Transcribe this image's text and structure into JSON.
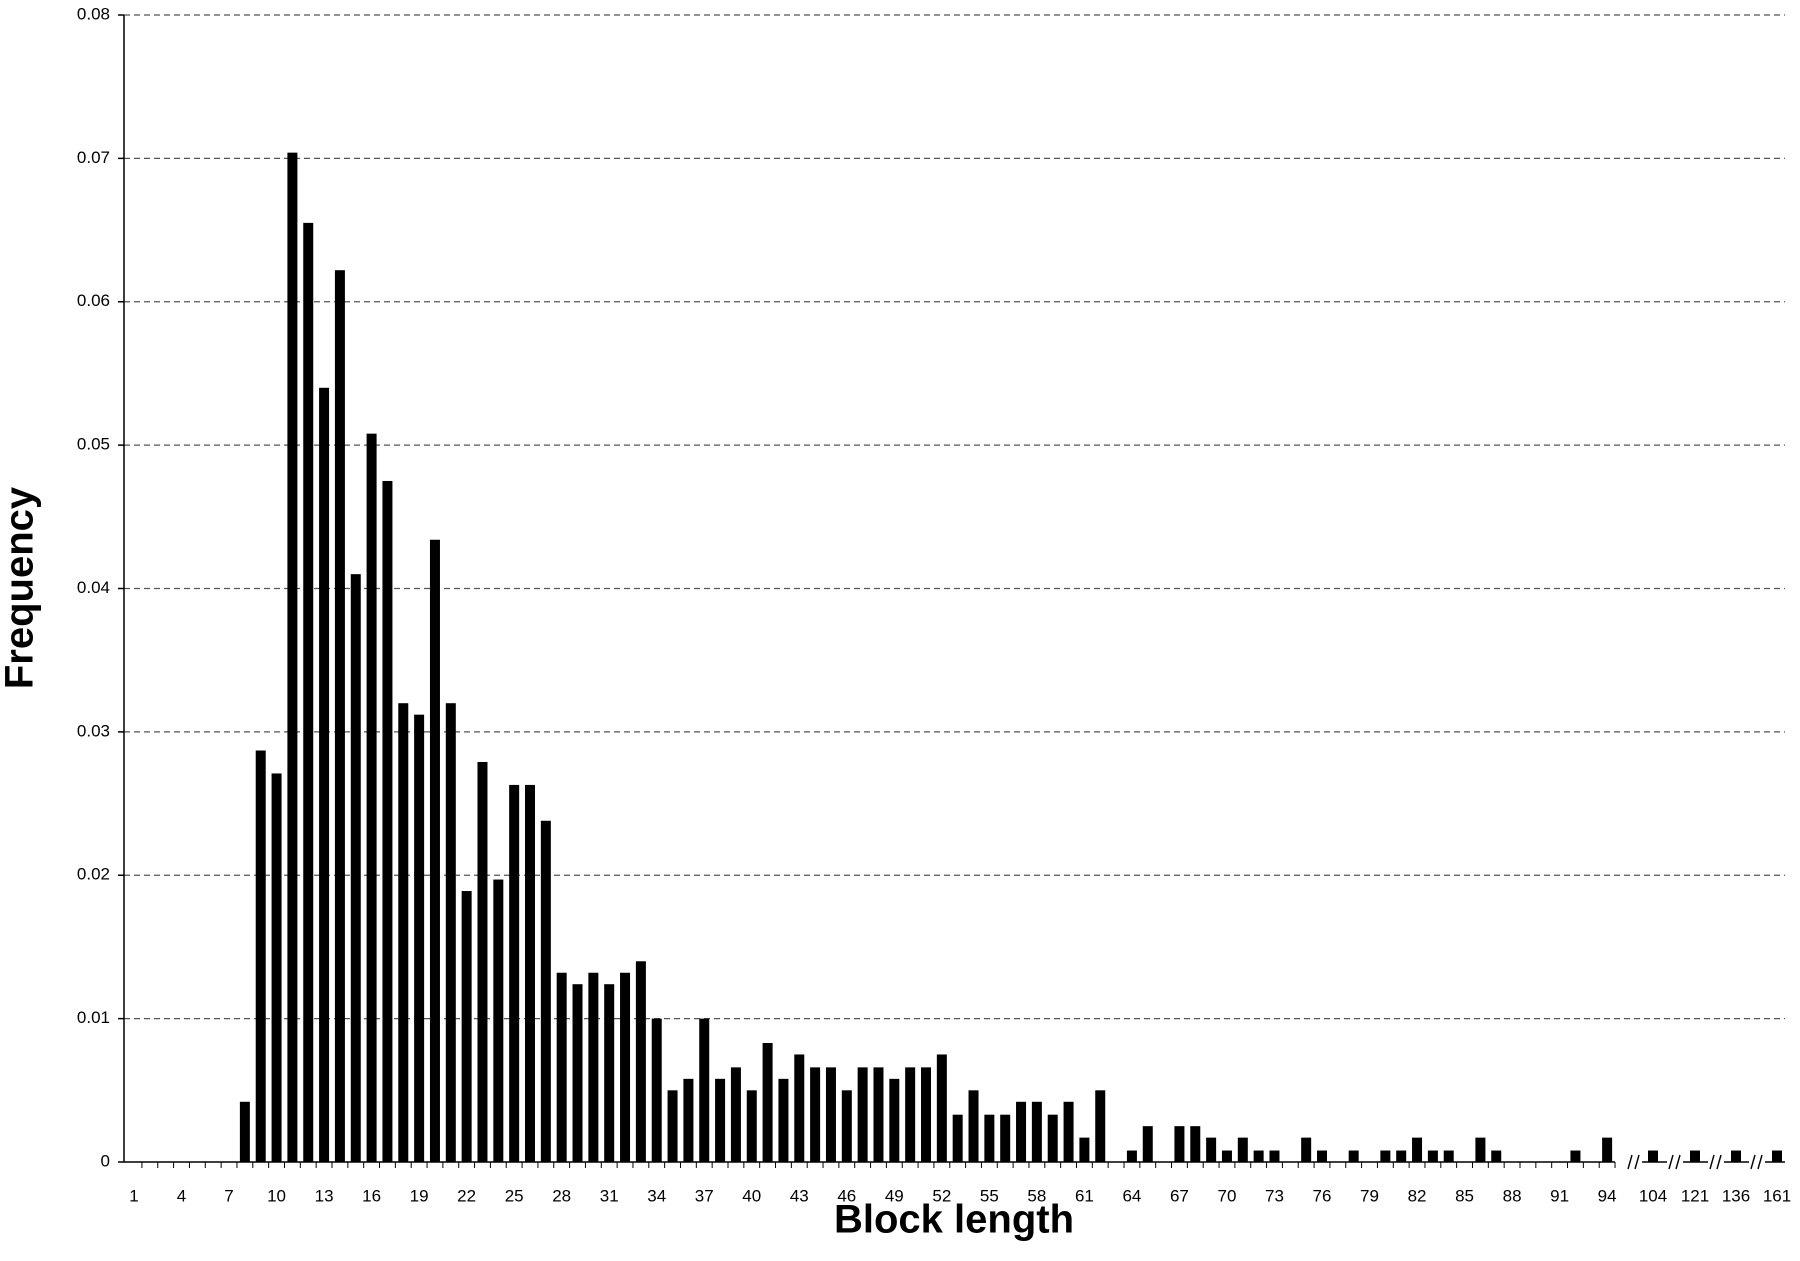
{
  "chart_data": {
    "type": "bar",
    "x_label": "Block length",
    "y_label": "Frequency",
    "categories": [
      1,
      null,
      null,
      4,
      null,
      null,
      7,
      null,
      null,
      10,
      null,
      null,
      13,
      null,
      null,
      16,
      null,
      null,
      19,
      null,
      null,
      22,
      null,
      null,
      25,
      null,
      null,
      28,
      null,
      null,
      31,
      null,
      null,
      34,
      null,
      null,
      37,
      null,
      null,
      40,
      null,
      null,
      43,
      null,
      null,
      46,
      null,
      null,
      49,
      null,
      null,
      52,
      null,
      null,
      55,
      null,
      null,
      58,
      null,
      null,
      61,
      null,
      null,
      64,
      null,
      null,
      67,
      null,
      null,
      70,
      null,
      null,
      73,
      null,
      null,
      76,
      null,
      null,
      79,
      null,
      null,
      82,
      null,
      null,
      85,
      null,
      null,
      88,
      null,
      null,
      91,
      null,
      null,
      94,
      104,
      121,
      136,
      161
    ],
    "values": [
      0,
      0,
      0,
      0,
      0,
      0,
      0,
      0.0042,
      0.0287,
      0.0271,
      0.0704,
      0.0655,
      0.054,
      0.0622,
      0.041,
      0.0508,
      0.0475,
      0.032,
      0.0312,
      0.0434,
      0.032,
      0.0189,
      0.0279,
      0.0197,
      0.0263,
      0.0263,
      0.0238,
      0.0132,
      0.0124,
      0.0132,
      0.0124,
      0.0132,
      0.014,
      0.01,
      0.005,
      0.0058,
      0.01,
      0.0058,
      0.0066,
      0.005,
      0.0083,
      0.0058,
      0.0075,
      0.0066,
      0.0066,
      0.005,
      0.0066,
      0.0066,
      0.0058,
      0.0066,
      0.0066,
      0.0075,
      0.0033,
      0.005,
      0.0033,
      0.0033,
      0.0042,
      0.0042,
      0.0033,
      0.0042,
      0.0017,
      0.005,
      0,
      0.0008,
      0.0025,
      0,
      0.0025,
      0.0025,
      0.0017,
      0.0008,
      0.0017,
      0.0008,
      0.0008,
      0,
      0.0017,
      0.0008,
      0,
      0.0008,
      0,
      0.0008,
      0.0008,
      0.0017,
      0.0008,
      0.0008,
      0,
      0.0017,
      0.0008,
      0,
      0,
      0,
      0,
      0.0008,
      0,
      0.0017,
      0.0008,
      0.0008,
      0.0008,
      0.0008
    ],
    "color": "#000000",
    "ylim": [
      0,
      0.08
    ],
    "yticks": [
      0,
      0.01,
      0.02,
      0.03,
      0.04,
      0.05,
      0.06,
      0.07,
      0.08
    ],
    "grid": true
  }
}
